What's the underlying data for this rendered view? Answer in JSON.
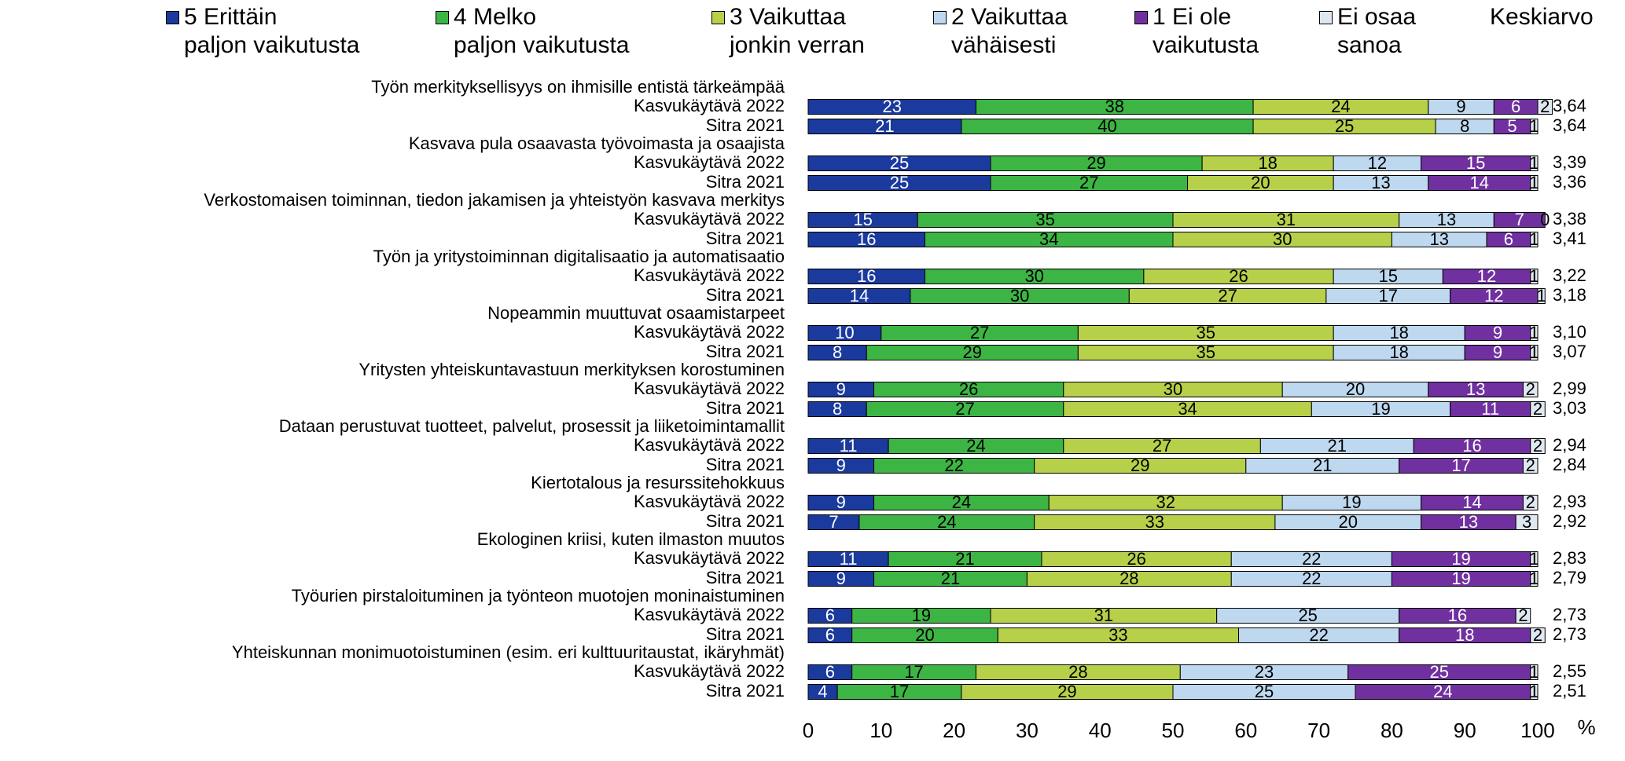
{
  "chart_data": {
    "type": "bar",
    "orientation": "horizontal",
    "stacked": true,
    "groups": [
      "Työn merkityksellisyys on ihmisille entistä tärkeämpää",
      "Kasvava pula osaavasta työvoimasta ja osaajista",
      "Verkostomaisen toiminnan, tiedon jakamisen ja yhteistyön kasvava merkitys",
      "Työn ja yritystoiminnan digitalisaatio ja automatisaatio",
      "Nopeammin muuttuvat osaamistarpeet",
      "Yritysten yhteiskuntavastuun merkityksen korostuminen",
      "Dataan perustuvat tuotteet, palvelut, prosessit ja liiketoimintamallit",
      "Kiertotalous ja resurssitehokkuus",
      "Ekologinen kriisi, kuten ilmaston muutos",
      "Työurien pirstaloituminen ja työnteon muotojen moninaistuminen",
      "Yhteiskunnan monimuotoistuminen (esim. eri kulttuuritaustat, ikäryhmät)"
    ],
    "categories": [
      "Kasvukäytävä 2022",
      "Sitra 2021",
      "Kasvukäytävä 2022",
      "Sitra 2021",
      "Kasvukäytävä 2022",
      "Sitra 2021",
      "Kasvukäytävä 2022",
      "Sitra 2021",
      "Kasvukäytävä 2022",
      "Sitra 2021",
      "Kasvukäytävä 2022",
      "Sitra 2021",
      "Kasvukäytävä 2022",
      "Sitra 2021",
      "Kasvukäytävä 2022",
      "Sitra 2021",
      "Kasvukäytävä 2022",
      "Sitra 2021",
      "Kasvukäytävä 2022",
      "Sitra 2021",
      "Kasvukäytävä 2022",
      "Sitra 2021"
    ],
    "series": [
      {
        "name": "5 Erittäin\npaljon vaikutusta",
        "color": "#1b3a9e",
        "label_color": "#ffffff",
        "values": [
          23,
          21,
          25,
          25,
          15,
          16,
          16,
          14,
          10,
          8,
          9,
          8,
          11,
          9,
          9,
          7,
          11,
          9,
          6,
          6,
          6,
          4
        ]
      },
      {
        "name": "4 Melko\npaljon vaikutusta",
        "color": "#3db544",
        "label_color": "#000000",
        "values": [
          38,
          40,
          29,
          27,
          35,
          34,
          30,
          30,
          27,
          29,
          26,
          27,
          24,
          22,
          24,
          24,
          21,
          21,
          19,
          20,
          17,
          17
        ]
      },
      {
        "name": "3 Vaikuttaa\njonkin verran",
        "color": "#b6d04a",
        "label_color": "#000000",
        "values": [
          24,
          25,
          18,
          20,
          31,
          30,
          26,
          27,
          35,
          35,
          30,
          34,
          27,
          29,
          32,
          33,
          26,
          28,
          31,
          33,
          28,
          29
        ]
      },
      {
        "name": "2 Vaikuttaa\nvähäisesti",
        "color": "#bed8ef",
        "label_color": "#000000",
        "values": [
          9,
          8,
          12,
          13,
          13,
          13,
          15,
          17,
          18,
          18,
          20,
          19,
          21,
          21,
          19,
          20,
          22,
          22,
          25,
          22,
          23,
          25
        ]
      },
      {
        "name": "1 Ei ole\nvaikutusta",
        "color": "#7130a0",
        "label_color": "#ffffff",
        "values": [
          6,
          5,
          15,
          14,
          7,
          6,
          12,
          12,
          9,
          9,
          13,
          11,
          16,
          17,
          14,
          13,
          19,
          19,
          16,
          18,
          25,
          24
        ]
      },
      {
        "name": "Ei osaa\nsanoa",
        "color": "#dfe7f1",
        "label_color": "#000000",
        "values": [
          2,
          1,
          1,
          1,
          0,
          1,
          1,
          1,
          1,
          1,
          2,
          2,
          2,
          2,
          2,
          3,
          1,
          1,
          2,
          2,
          1,
          1
        ]
      }
    ],
    "averages": {
      "name": "Keskiarvo",
      "values": [
        3.64,
        3.64,
        3.39,
        3.36,
        3.38,
        3.41,
        3.22,
        3.18,
        3.1,
        3.07,
        2.99,
        3.03,
        2.94,
        2.84,
        2.93,
        2.92,
        2.83,
        2.79,
        2.73,
        2.73,
        2.55,
        2.51
      ],
      "value_labels": [
        "3,64",
        "3,64",
        "3,39",
        "3,36",
        "3,38",
        "3,41",
        "3,22",
        "3,18",
        "3,10",
        "3,07",
        "2,99",
        "3,03",
        "2,94",
        "2,84",
        "2,93",
        "2,92",
        "2,83",
        "2,79",
        "2,73",
        "2,73",
        "2,55",
        "2,51"
      ]
    },
    "xlim": [
      0,
      100
    ],
    "xticks": [
      0,
      10,
      20,
      30,
      40,
      50,
      60,
      70,
      80,
      90,
      100
    ],
    "xlabel": "%"
  }
}
